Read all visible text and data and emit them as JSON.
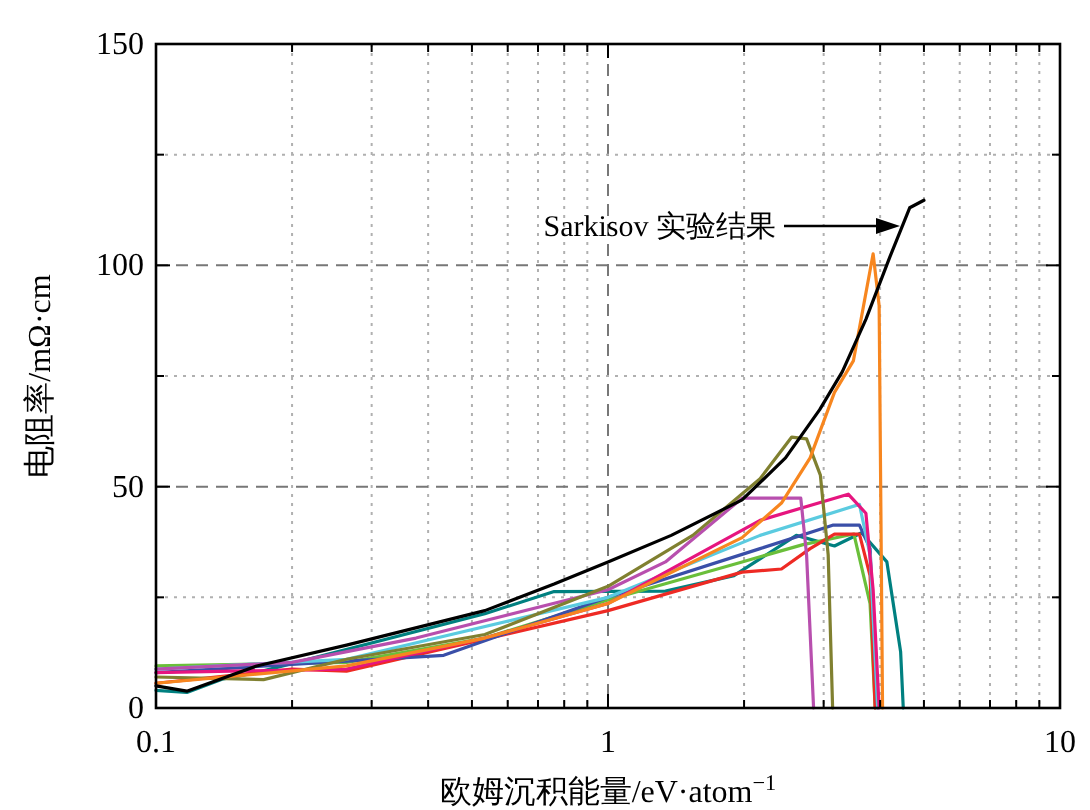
{
  "chart_data": {
    "type": "line",
    "xlabel": "欧姆沉积能量/eV·atom$^{−1}$",
    "ylabel": "电阻率/mΩ·cm",
    "log": "x",
    "xlim": [
      0.1,
      10
    ],
    "ylim": [
      0,
      150
    ],
    "xticks": [
      0.1,
      {
        "value": 0.2,
        "label": null
      },
      {
        "value": 0.3,
        "label": null
      },
      {
        "value": 0.4,
        "label": null
      },
      {
        "value": 0.5,
        "label": null
      },
      {
        "value": 0.6,
        "label": null
      },
      {
        "value": 0.7,
        "label": null
      },
      {
        "value": 0.8,
        "label": null
      },
      {
        "value": 0.9,
        "label": null
      },
      1,
      {
        "value": 2,
        "label": null
      },
      {
        "value": 3,
        "label": null
      },
      {
        "value": 4,
        "label": null
      },
      {
        "value": 5,
        "label": null
      },
      {
        "value": 6,
        "label": null
      },
      {
        "value": 7,
        "label": null
      },
      {
        "value": 8,
        "label": null
      },
      {
        "value": 9,
        "label": null
      },
      10
    ],
    "yticks": [
      0,
      {
        "value": 25,
        "label": null
      },
      50,
      {
        "value": 75,
        "label": null
      },
      100,
      {
        "value": 125,
        "label": null
      },
      150
    ],
    "grid": true,
    "line_style": "solid",
    "annotations": [
      "Sarkisov 实验结果"
    ],
    "series": [
      {
        "color": "#008080",
        "x": [
          0.1,
          0.117,
          0.14,
          0.167,
          0.534,
          0.76,
          1.34,
          1.9,
          2.61,
          3.17,
          3.64,
          4.14,
          4.44,
          4.5
        ],
        "values": [
          4,
          3.5,
          6.5,
          8,
          21.3,
          26.3,
          26.4,
          29.9,
          39,
          36.6,
          39.6,
          33,
          12.7,
          0
        ]
      },
      {
        "color": "#6abf3a",
        "x": [
          0.1,
          0.264,
          0.534,
          1,
          1.98,
          2.7,
          3.5,
          3.8,
          3.9
        ],
        "values": [
          9.5,
          10.3,
          15.8,
          24.4,
          33,
          36.9,
          39.3,
          23.6,
          0
        ]
      },
      {
        "color": "#ee2a24",
        "x": [
          0.1,
          0.2,
          0.264,
          1,
          1.98,
          2.42,
          2.8,
          3.17,
          3.6,
          3.8,
          3.9
        ],
        "values": [
          5.6,
          8.8,
          8.3,
          22,
          30.7,
          31.4,
          36,
          39.3,
          39.3,
          29.9,
          0
        ]
      },
      {
        "color": "#3a4fa8",
        "x": [
          0.1,
          0.433,
          1,
          2.17,
          3.14,
          3.6,
          3.8,
          3.95
        ],
        "values": [
          8,
          11.9,
          25,
          36,
          41.3,
          41.3,
          36,
          0
        ]
      },
      {
        "color": "#5bcbe0",
        "x": [
          0.1,
          0.264,
          1,
          2.17,
          3.6,
          3.8,
          3.95
        ],
        "values": [
          8.8,
          11,
          25,
          39,
          46,
          34.6,
          0
        ]
      },
      {
        "color": "#e6157f",
        "x": [
          0.1,
          0.264,
          0.534,
          1,
          2.17,
          3.4,
          3.72,
          3.86,
          3.98
        ],
        "values": [
          8,
          8.8,
          15.8,
          23.6,
          42.4,
          48.3,
          44,
          26.7,
          0
        ]
      },
      {
        "color": "#b84fae",
        "x": [
          0.1,
          0.2,
          0.376,
          1,
          1.34,
          1.98,
          2.67,
          2.75,
          2.85
        ],
        "values": [
          8.8,
          10.3,
          15.8,
          26.7,
          33,
          47.4,
          47.4,
          34.6,
          0
        ]
      },
      {
        "color": "#808030",
        "x": [
          0.1,
          0.173,
          0.264,
          0.534,
          1,
          1.54,
          2.17,
          2.55,
          2.75,
          2.95,
          3.07,
          3.14
        ],
        "values": [
          7,
          6.4,
          11,
          16.6,
          27.5,
          39,
          51.8,
          61.2,
          60.8,
          52.6,
          34.6,
          0
        ]
      },
      {
        "color": "#f7861f",
        "x": [
          0.1,
          0.264,
          0.534,
          1,
          1.98,
          2.42,
          2.8,
          3.17,
          3.49,
          3.86,
          3.98,
          4.05
        ],
        "values": [
          5.6,
          9.5,
          15.8,
          23.6,
          38.5,
          46.3,
          56.5,
          71.3,
          78.4,
          102.6,
          90.9,
          0
        ]
      },
      {
        "color": "#000000",
        "x": [
          0.1,
          0.117,
          0.167,
          0.264,
          0.534,
          0.76,
          1,
          1.38,
          1.98,
          2.47,
          2.94,
          3.3,
          3.72,
          4.2,
          4.65,
          5.0
        ],
        "values": [
          5,
          3.8,
          9.5,
          14.2,
          22,
          28,
          33,
          39,
          47,
          56.5,
          67.4,
          76,
          87.8,
          101.8,
          113,
          114.7
        ]
      }
    ]
  }
}
